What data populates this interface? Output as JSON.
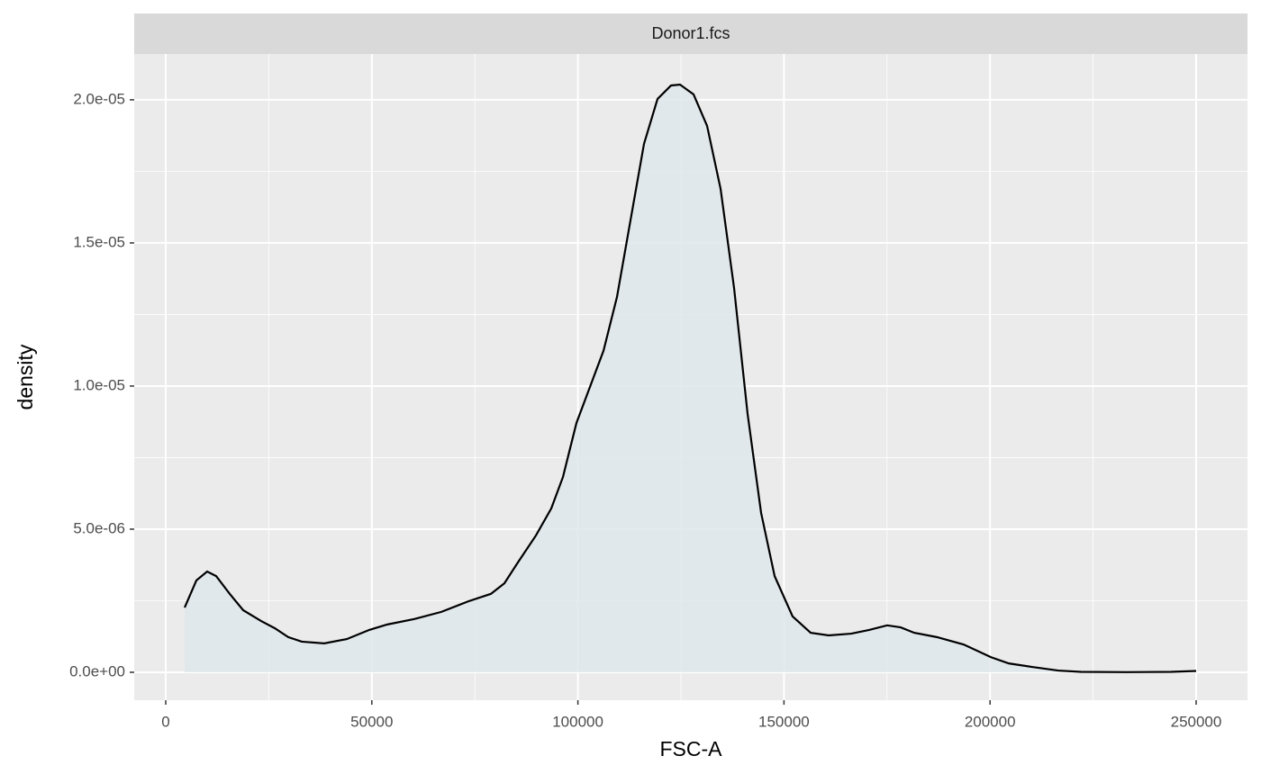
{
  "chart_data": {
    "type": "density",
    "strip_title": "Donor1.fcs",
    "xlabel": "FSC-A",
    "ylabel": "density",
    "x": [
      4590,
      7430,
      10050,
      12240,
      15520,
      18790,
      23160,
      26440,
      29720,
      33000,
      38460,
      43930,
      49390,
      53760,
      60320,
      66870,
      73430,
      78890,
      82170,
      85450,
      89820,
      93530,
      96370,
      99650,
      102930,
      106210,
      109480,
      112760,
      116040,
      119320,
      122600,
      124780,
      128060,
      131340,
      134620,
      137890,
      141170,
      144450,
      147730,
      152100,
      156470,
      160840,
      166300,
      170670,
      175040,
      178320,
      181600,
      187060,
      193620,
      200180,
      204550,
      210010,
      216570,
      222030,
      232960,
      243880,
      250000
    ],
    "values": [
      2.26e-06,
      3.21e-06,
      3.52e-06,
      3.36e-06,
      2.74e-06,
      2.17e-06,
      1.79e-06,
      1.54e-06,
      1.23e-06,
      1.07e-06,
      1.01e-06,
      1.16e-06,
      1.48e-06,
      1.67e-06,
      1.86e-06,
      2.11e-06,
      2.48e-06,
      2.74e-06,
      3.11e-06,
      3.84e-06,
      4.78e-06,
      5.72e-06,
      6.82e-06,
      8.71e-06,
      9.97e-06,
      1.123e-05,
      1.311e-05,
      1.579e-05,
      1.846e-05,
      2.003e-05,
      2.05e-05,
      2.053e-05,
      2.019e-05,
      1.909e-05,
      1.689e-05,
      1.343e-05,
      9.03e-06,
      5.57e-06,
      3.36e-06,
      1.95e-06,
      1.38e-06,
      1.29e-06,
      1.35e-06,
      1.48e-06,
      1.64e-06,
      1.57e-06,
      1.38e-06,
      1.23e-06,
      9.7e-07,
      5.3e-07,
      3.1e-07,
      1.9e-07,
      6e-08,
      1.6e-08,
      6e-09,
      1.6e-08,
      4.7e-08
    ],
    "color": "#000000",
    "fill": "#dfe8ec",
    "xlim": [
      -7650,
      262460
    ],
    "ylim": [
      -9.75e-07,
      2.16e-05
    ],
    "xticks": [
      0,
      50000,
      100000,
      150000,
      200000,
      250000
    ],
    "yticks": [
      {
        "value": 0,
        "label": "0.0e+00"
      },
      {
        "value": 5e-06,
        "label": "5.0e-06"
      },
      {
        "value": 1e-05,
        "label": "1.0e-05"
      },
      {
        "value": 1.5e-05,
        "label": "1.5e-05"
      },
      {
        "value": 2e-05,
        "label": "2.0e-05"
      }
    ],
    "xminor": [
      25000,
      75000,
      125000,
      175000,
      225000
    ],
    "yminor": [
      2.5e-06,
      7.5e-06,
      1.25e-05,
      1.75e-05
    ],
    "grid": true
  }
}
